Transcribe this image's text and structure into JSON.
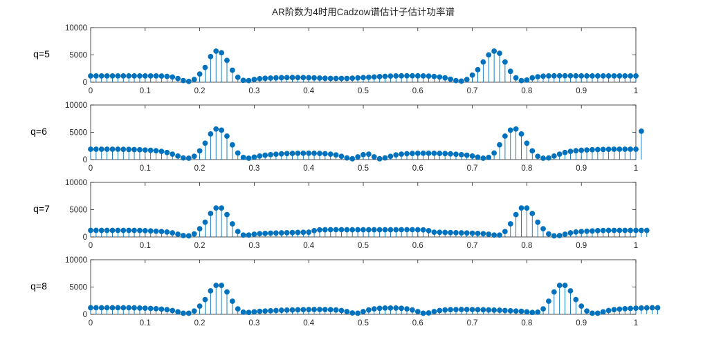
{
  "figure": {
    "title": "AR阶数为4时用Cadzow谱估计子估计功率谱"
  },
  "chart_data": [
    {
      "type": "stem",
      "ylabel": "q=5",
      "xlim": [
        0,
        1
      ],
      "ylim": [
        0,
        10000
      ],
      "xticks": [
        "0",
        "0.1",
        "0.2",
        "0.3",
        "0.4",
        "0.5",
        "0.6",
        "0.7",
        "0.8",
        "0.9",
        "1"
      ],
      "yticks": [
        "0",
        "5000",
        "10000"
      ],
      "grid": false,
      "color": "#0072BD",
      "x_step": 0.01,
      "values": [
        1150,
        1150,
        1150,
        1150,
        1150,
        1150,
        1150,
        1150,
        1150,
        1150,
        1150,
        1150,
        1150,
        1130,
        1080,
        950,
        680,
        300,
        150,
        500,
        1500,
        2700,
        4700,
        5700,
        5400,
        4000,
        2200,
        900,
        350,
        300,
        500,
        650,
        720,
        760,
        800,
        830,
        850,
        860,
        860,
        850,
        830,
        800,
        760,
        720,
        700,
        690,
        690,
        700,
        740,
        800,
        850,
        900,
        960,
        1020,
        1080,
        1120,
        1150,
        1160,
        1170,
        1170,
        1160,
        1150,
        1120,
        1050,
        950,
        800,
        550,
        300,
        200,
        500,
        1300,
        2300,
        3700,
        5000,
        5700,
        5300,
        3700,
        2000,
        800,
        300,
        400,
        800,
        1000,
        1100,
        1150,
        1160,
        1170,
        1170,
        1170,
        1160,
        1150,
        1150,
        1150,
        1150,
        1150,
        1150,
        1150,
        1150,
        1150,
        1150,
        1150
      ]
    },
    {
      "type": "stem",
      "ylabel": "q=6",
      "xlim": [
        0,
        1
      ],
      "ylim": [
        0,
        10000
      ],
      "xticks": [
        "0",
        "0.1",
        "0.2",
        "0.3",
        "0.4",
        "0.5",
        "0.6",
        "0.7",
        "0.8",
        "0.9",
        "1"
      ],
      "yticks": [
        "0",
        "5000",
        "10000"
      ],
      "grid": false,
      "color": "#0072BD",
      "x_step": 0.01,
      "values": [
        1900,
        1900,
        1900,
        1900,
        1900,
        1900,
        1880,
        1860,
        1830,
        1800,
        1760,
        1700,
        1620,
        1500,
        1300,
        1000,
        650,
        300,
        250,
        600,
        1600,
        3000,
        4700,
        5600,
        5400,
        4300,
        2700,
        1200,
        400,
        250,
        450,
        650,
        800,
        900,
        980,
        1050,
        1100,
        1130,
        1150,
        1160,
        1160,
        1150,
        1120,
        1080,
        1000,
        850,
        600,
        300,
        150,
        500,
        900,
        1000,
        500,
        150,
        300,
        600,
        850,
        1000,
        1080,
        1120,
        1150,
        1160,
        1160,
        1150,
        1130,
        1100,
        1050,
        980,
        900,
        800,
        650,
        450,
        250,
        400,
        1200,
        2700,
        4300,
        5400,
        5600,
        4700,
        3000,
        1600,
        600,
        250,
        300,
        650,
        1000,
        1300,
        1500,
        1620,
        1700,
        1760,
        1800,
        1830,
        1860,
        1880,
        1900,
        1900,
        1900,
        1900,
        1900,
        5200
      ]
    },
    {
      "type": "stem",
      "ylabel": "q=7",
      "xlim": [
        0,
        1
      ],
      "ylim": [
        0,
        10000
      ],
      "xticks": [
        "0",
        "0.1",
        "0.2",
        "0.3",
        "0.4",
        "0.5",
        "0.6",
        "0.7",
        "0.8",
        "0.9",
        "1"
      ],
      "yticks": [
        "0",
        "5000",
        "10000"
      ],
      "grid": false,
      "color": "#0072BD",
      "x_step": 0.01,
      "values": [
        1200,
        1200,
        1200,
        1200,
        1200,
        1200,
        1200,
        1200,
        1200,
        1180,
        1150,
        1100,
        1050,
        1000,
        900,
        750,
        500,
        250,
        200,
        550,
        1500,
        2700,
        4300,
        5300,
        5300,
        4100,
        2400,
        1000,
        350,
        350,
        500,
        600,
        650,
        700,
        720,
        750,
        770,
        800,
        830,
        850,
        870,
        1150,
        1300,
        1320,
        1330,
        1330,
        1330,
        1320,
        1320,
        1320,
        1320,
        1320,
        1320,
        1320,
        1320,
        1320,
        1320,
        1330,
        1330,
        1330,
        1320,
        1300,
        1150,
        870,
        850,
        830,
        800,
        770,
        750,
        720,
        700,
        650,
        600,
        500,
        350,
        350,
        1000,
        2400,
        4100,
        5300,
        5300,
        4300,
        2700,
        1500,
        550,
        200,
        250,
        500,
        750,
        900,
        1000,
        1050,
        1100,
        1150,
        1180,
        1200,
        1200,
        1200,
        1200,
        1200,
        1200,
        1200,
        1200
      ]
    },
    {
      "type": "stem",
      "ylabel": "q=8",
      "xlim": [
        0,
        1
      ],
      "ylim": [
        0,
        10000
      ],
      "xticks": [
        "0",
        "0.1",
        "0.2",
        "0.3",
        "0.4",
        "0.5",
        "0.6",
        "0.7",
        "0.8",
        "0.9",
        "1"
      ],
      "yticks": [
        "0",
        "5000",
        "10000"
      ],
      "grid": false,
      "color": "#0072BD",
      "x_step": 0.01,
      "values": [
        1200,
        1200,
        1200,
        1200,
        1200,
        1200,
        1200,
        1200,
        1180,
        1150,
        1120,
        1080,
        1030,
        950,
        850,
        700,
        450,
        200,
        200,
        600,
        1500,
        2700,
        4300,
        5300,
        5300,
        4100,
        2400,
        1000,
        400,
        350,
        450,
        550,
        600,
        650,
        700,
        750,
        780,
        800,
        830,
        850,
        870,
        880,
        880,
        870,
        850,
        800,
        700,
        500,
        250,
        200,
        500,
        800,
        1000,
        1100,
        1150,
        1150,
        1150,
        1100,
        1000,
        800,
        500,
        200,
        250,
        500,
        700,
        800,
        850,
        870,
        880,
        880,
        870,
        850,
        830,
        800,
        780,
        750,
        700,
        650,
        600,
        550,
        450,
        350,
        400,
        1000,
        2400,
        4100,
        5300,
        5300,
        4300,
        2700,
        1500,
        600,
        200,
        200,
        450,
        700,
        850,
        950,
        1030,
        1080,
        1120,
        1150,
        1180,
        1200,
        1200
      ]
    }
  ]
}
